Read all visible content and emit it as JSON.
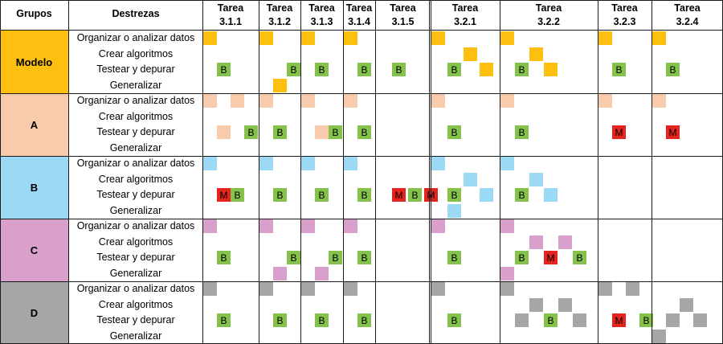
{
  "header": {
    "groups_label": "Grupos",
    "skills_label": "Destrezas"
  },
  "tasks": [
    {
      "line1": "Tarea",
      "line2": "3.1.1"
    },
    {
      "line1": "Tarea",
      "line2": "3.1.2"
    },
    {
      "line1": "Tarea",
      "line2": "3.1.3"
    },
    {
      "line1": "Tarea",
      "line2": "3.1.4"
    },
    {
      "line1": "Tarea",
      "line2": "3.1.5"
    },
    {
      "line1": "Tarea",
      "line2": "3.2.1"
    },
    {
      "line1": "Tarea",
      "line2": "3.2.2"
    },
    {
      "line1": "Tarea",
      "line2": "3.2.3"
    },
    {
      "line1": "Tarea",
      "line2": "3.2.4"
    }
  ],
  "skills": [
    "Organizar o analizar datos",
    "Crear algoritmos",
    "Testear y depurar",
    "Generalizar"
  ],
  "groups": [
    {
      "name": "Modelo",
      "color": "#fdc010"
    },
    {
      "name": "A",
      "color": "#f8cbad"
    },
    {
      "name": "B",
      "color": "#9cd9f4"
    },
    {
      "name": "C",
      "color": "#d9a0cc"
    },
    {
      "name": "D",
      "color": "#a6a6a6"
    }
  ],
  "codes": {
    "B": "B",
    "M": "M"
  },
  "colors": {
    "B": "#84c24c",
    "M": "#e52420",
    "grid": "#1a1a1a"
  },
  "marks": [
    [
      [
        [
          0,
          0,
          null
        ],
        [
          2,
          1,
          "B"
        ]
      ],
      [
        [
          0,
          0,
          null
        ],
        [
          2,
          2,
          "B"
        ],
        [
          3,
          1,
          null
        ]
      ],
      [
        [
          0,
          0,
          null
        ],
        [
          2,
          1,
          "B"
        ]
      ],
      [
        [
          0,
          0,
          null
        ],
        [
          2,
          1,
          "B"
        ]
      ],
      [
        [
          2,
          1,
          "B"
        ]
      ],
      [
        [
          0,
          0,
          null
        ],
        [
          1,
          2,
          null
        ],
        [
          2,
          1,
          "B"
        ],
        [
          2,
          3,
          null
        ]
      ],
      [
        [
          0,
          0,
          null
        ],
        [
          1,
          2,
          null
        ],
        [
          2,
          1,
          "B"
        ],
        [
          2,
          3,
          null
        ]
      ],
      [
        [
          0,
          0,
          null
        ],
        [
          2,
          1,
          "B"
        ]
      ],
      [
        [
          0,
          0,
          null
        ],
        [
          2,
          1,
          "B"
        ]
      ]
    ],
    [
      [
        [
          0,
          0,
          null
        ],
        [
          0,
          2,
          null
        ],
        [
          2,
          1,
          null
        ],
        [
          2,
          3,
          "B"
        ]
      ],
      [
        [
          0,
          0,
          null
        ],
        [
          2,
          1,
          "B"
        ]
      ],
      [
        [
          0,
          0,
          null
        ],
        [
          2,
          1,
          null
        ],
        [
          2,
          2,
          "B"
        ]
      ],
      [
        [
          0,
          0,
          null
        ],
        [
          2,
          1,
          "B"
        ]
      ],
      [],
      [
        [
          0,
          0,
          null
        ],
        [
          2,
          1,
          "B"
        ]
      ],
      [
        [
          0,
          0,
          null
        ],
        [
          2,
          1,
          "B"
        ]
      ],
      [
        [
          0,
          0,
          null
        ],
        [
          2,
          1,
          "M"
        ]
      ],
      [
        [
          0,
          0,
          null
        ],
        [
          2,
          1,
          "M"
        ]
      ]
    ],
    [
      [
        [
          0,
          0,
          null
        ],
        [
          2,
          1,
          "M"
        ],
        [
          2,
          2,
          "B"
        ]
      ],
      [
        [
          0,
          0,
          null
        ],
        [
          2,
          1,
          "B"
        ]
      ],
      [
        [
          0,
          0,
          null
        ],
        [
          2,
          1,
          "B"
        ]
      ],
      [
        [
          0,
          0,
          null
        ],
        [
          2,
          1,
          "B"
        ]
      ],
      [
        [
          2,
          1,
          "M"
        ],
        [
          2,
          2,
          "B"
        ],
        [
          2,
          3,
          "M"
        ]
      ],
      [
        [
          0,
          0,
          null
        ],
        [
          1,
          2,
          null
        ],
        [
          2,
          1,
          "B"
        ],
        [
          2,
          3,
          null
        ],
        [
          3,
          1,
          null
        ]
      ],
      [
        [
          0,
          0,
          null
        ],
        [
          1,
          2,
          null
        ],
        [
          2,
          1,
          "B"
        ],
        [
          2,
          3,
          null
        ]
      ],
      [],
      []
    ],
    [
      [
        [
          0,
          0,
          null
        ],
        [
          2,
          1,
          "B"
        ]
      ],
      [
        [
          0,
          0,
          null
        ],
        [
          2,
          2,
          "B"
        ],
        [
          3,
          1,
          null
        ]
      ],
      [
        [
          0,
          0,
          null
        ],
        [
          2,
          2,
          "B"
        ],
        [
          3,
          1,
          null
        ]
      ],
      [
        [
          0,
          0,
          null
        ],
        [
          2,
          1,
          "B"
        ]
      ],
      [],
      [
        [
          0,
          0,
          null
        ],
        [
          2,
          1,
          "B"
        ]
      ],
      [
        [
          0,
          0,
          null
        ],
        [
          1,
          2,
          null
        ],
        [
          1,
          4,
          null
        ],
        [
          2,
          1,
          "B"
        ],
        [
          2,
          3,
          "M"
        ],
        [
          2,
          5,
          "B"
        ],
        [
          3,
          0,
          null
        ]
      ],
      [],
      []
    ],
    [
      [
        [
          0,
          0,
          null
        ],
        [
          2,
          1,
          "B"
        ]
      ],
      [
        [
          0,
          0,
          null
        ],
        [
          2,
          1,
          "B"
        ]
      ],
      [
        [
          0,
          0,
          null
        ],
        [
          2,
          1,
          "B"
        ]
      ],
      [
        [
          0,
          0,
          null
        ],
        [
          2,
          1,
          "B"
        ]
      ],
      [],
      [
        [
          0,
          0,
          null
        ],
        [
          2,
          1,
          "B"
        ]
      ],
      [
        [
          0,
          0,
          null
        ],
        [
          1,
          2,
          null
        ],
        [
          1,
          4,
          null
        ],
        [
          2,
          1,
          null
        ],
        [
          2,
          3,
          "B"
        ],
        [
          2,
          5,
          null
        ]
      ],
      [
        [
          0,
          0,
          null
        ],
        [
          0,
          2,
          null
        ],
        [
          2,
          1,
          "M"
        ],
        [
          2,
          3,
          "B"
        ]
      ],
      [
        [
          1,
          2,
          null
        ],
        [
          2,
          1,
          null
        ],
        [
          2,
          3,
          null
        ],
        [
          3,
          0,
          null
        ]
      ]
    ]
  ]
}
